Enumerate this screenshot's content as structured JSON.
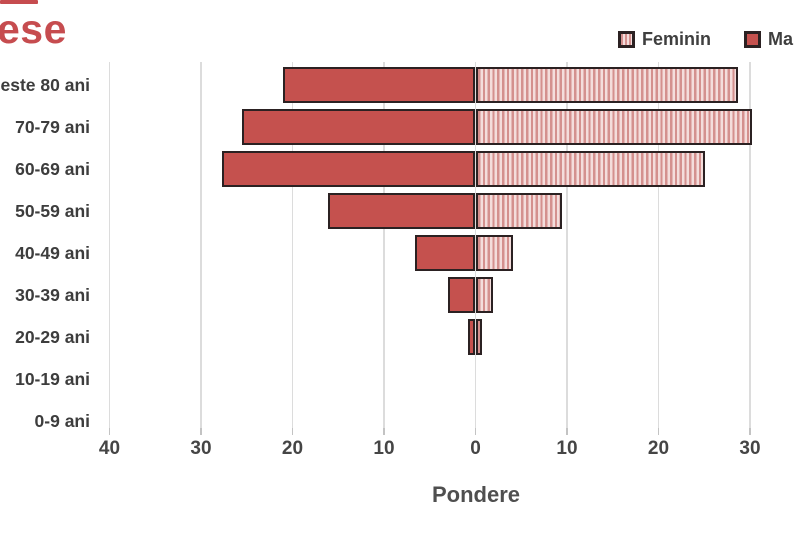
{
  "title": {
    "visible_text": "ese",
    "color": "#c64c4f"
  },
  "legend": {
    "position": "top-right",
    "items": [
      {
        "label": "Feminin",
        "swatch": "hatched"
      },
      {
        "label": "Ma",
        "swatch": "solid"
      }
    ]
  },
  "chart_data": {
    "type": "bar",
    "subtype": "population-pyramid",
    "categories": [
      "este 80 ani",
      "70-79 ani",
      "60-69 ani",
      "50-59 ani",
      "40-49 ani",
      "30-39 ani",
      "20-29 ani",
      "10-19 ani",
      "0-9 ani"
    ],
    "series": [
      {
        "name": "Ma",
        "side": "left",
        "pattern": "solid",
        "values": [
          21,
          25.5,
          27.7,
          16.1,
          6.6,
          3.0,
          0.8,
          0,
          0
        ]
      },
      {
        "name": "Feminin",
        "side": "right",
        "pattern": "hatched",
        "values": [
          28.7,
          30.2,
          25.1,
          9.5,
          4.1,
          1.9,
          0.7,
          0,
          0
        ]
      }
    ],
    "xlabel": "Pondere",
    "x_ticks": [
      {
        "label": "40",
        "value": -40
      },
      {
        "label": "30",
        "value": -30
      },
      {
        "label": "20",
        "value": -20
      },
      {
        "label": "10",
        "value": -10
      },
      {
        "label": "0",
        "value": 0
      },
      {
        "label": "10",
        "value": 10
      },
      {
        "label": "20",
        "value": 20
      },
      {
        "label": "30",
        "value": 30
      }
    ],
    "xlim": [
      -40,
      35
    ],
    "grid": true,
    "legend_position": "top-right"
  },
  "colors": {
    "bar_solid": "#c5514e",
    "bar_border": "#2b2122",
    "hatch_stripe": "#d4908e",
    "hatch_background": "#f4dddc",
    "gridline": "#dcdcdc",
    "axis_text": "#454545",
    "title_red": "#c64c4f"
  }
}
